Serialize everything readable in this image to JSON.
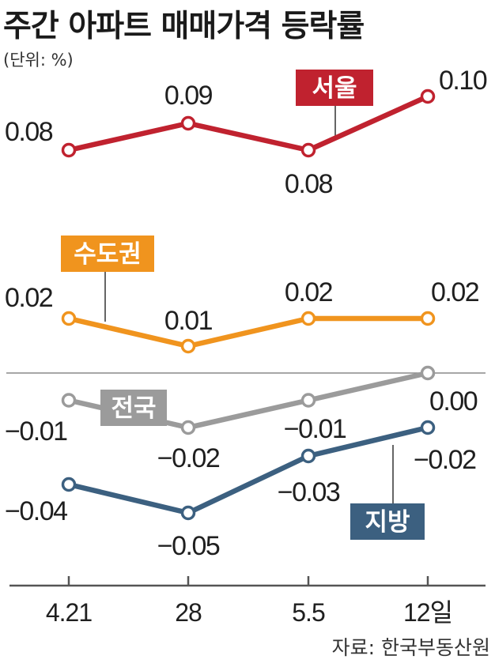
{
  "title": "주간 아파트 매매가격 등락률",
  "unit": "(단위: %)",
  "source": "자료: 한국부동산원",
  "chart_data": {
    "type": "line",
    "categories": [
      "4.21",
      "28",
      "5.5",
      "12일"
    ],
    "series": [
      {
        "name": "서울",
        "color": "#c0222f",
        "values": [
          0.08,
          0.09,
          0.08,
          0.1
        ],
        "value_labels": [
          "0.08",
          "0.09",
          "0.08",
          "0.10"
        ]
      },
      {
        "name": "수도권",
        "color": "#f0941e",
        "values": [
          0.02,
          0.01,
          0.02,
          0.02
        ],
        "value_labels": [
          "0.02",
          "0.01",
          "0.02",
          "0.02"
        ]
      },
      {
        "name": "전국",
        "color": "#9b9b9b",
        "values": [
          -0.01,
          -0.02,
          -0.01,
          0.0
        ],
        "value_labels": [
          "−0.01",
          "−0.02",
          "−0.01",
          "0.00"
        ]
      },
      {
        "name": "지방",
        "color": "#3c6080",
        "values": [
          -0.04,
          -0.05,
          -0.03,
          -0.02
        ],
        "value_labels": [
          "−0.04",
          "−0.05",
          "−0.03",
          "−0.02"
        ]
      }
    ],
    "zero_line": true,
    "grid": false
  }
}
